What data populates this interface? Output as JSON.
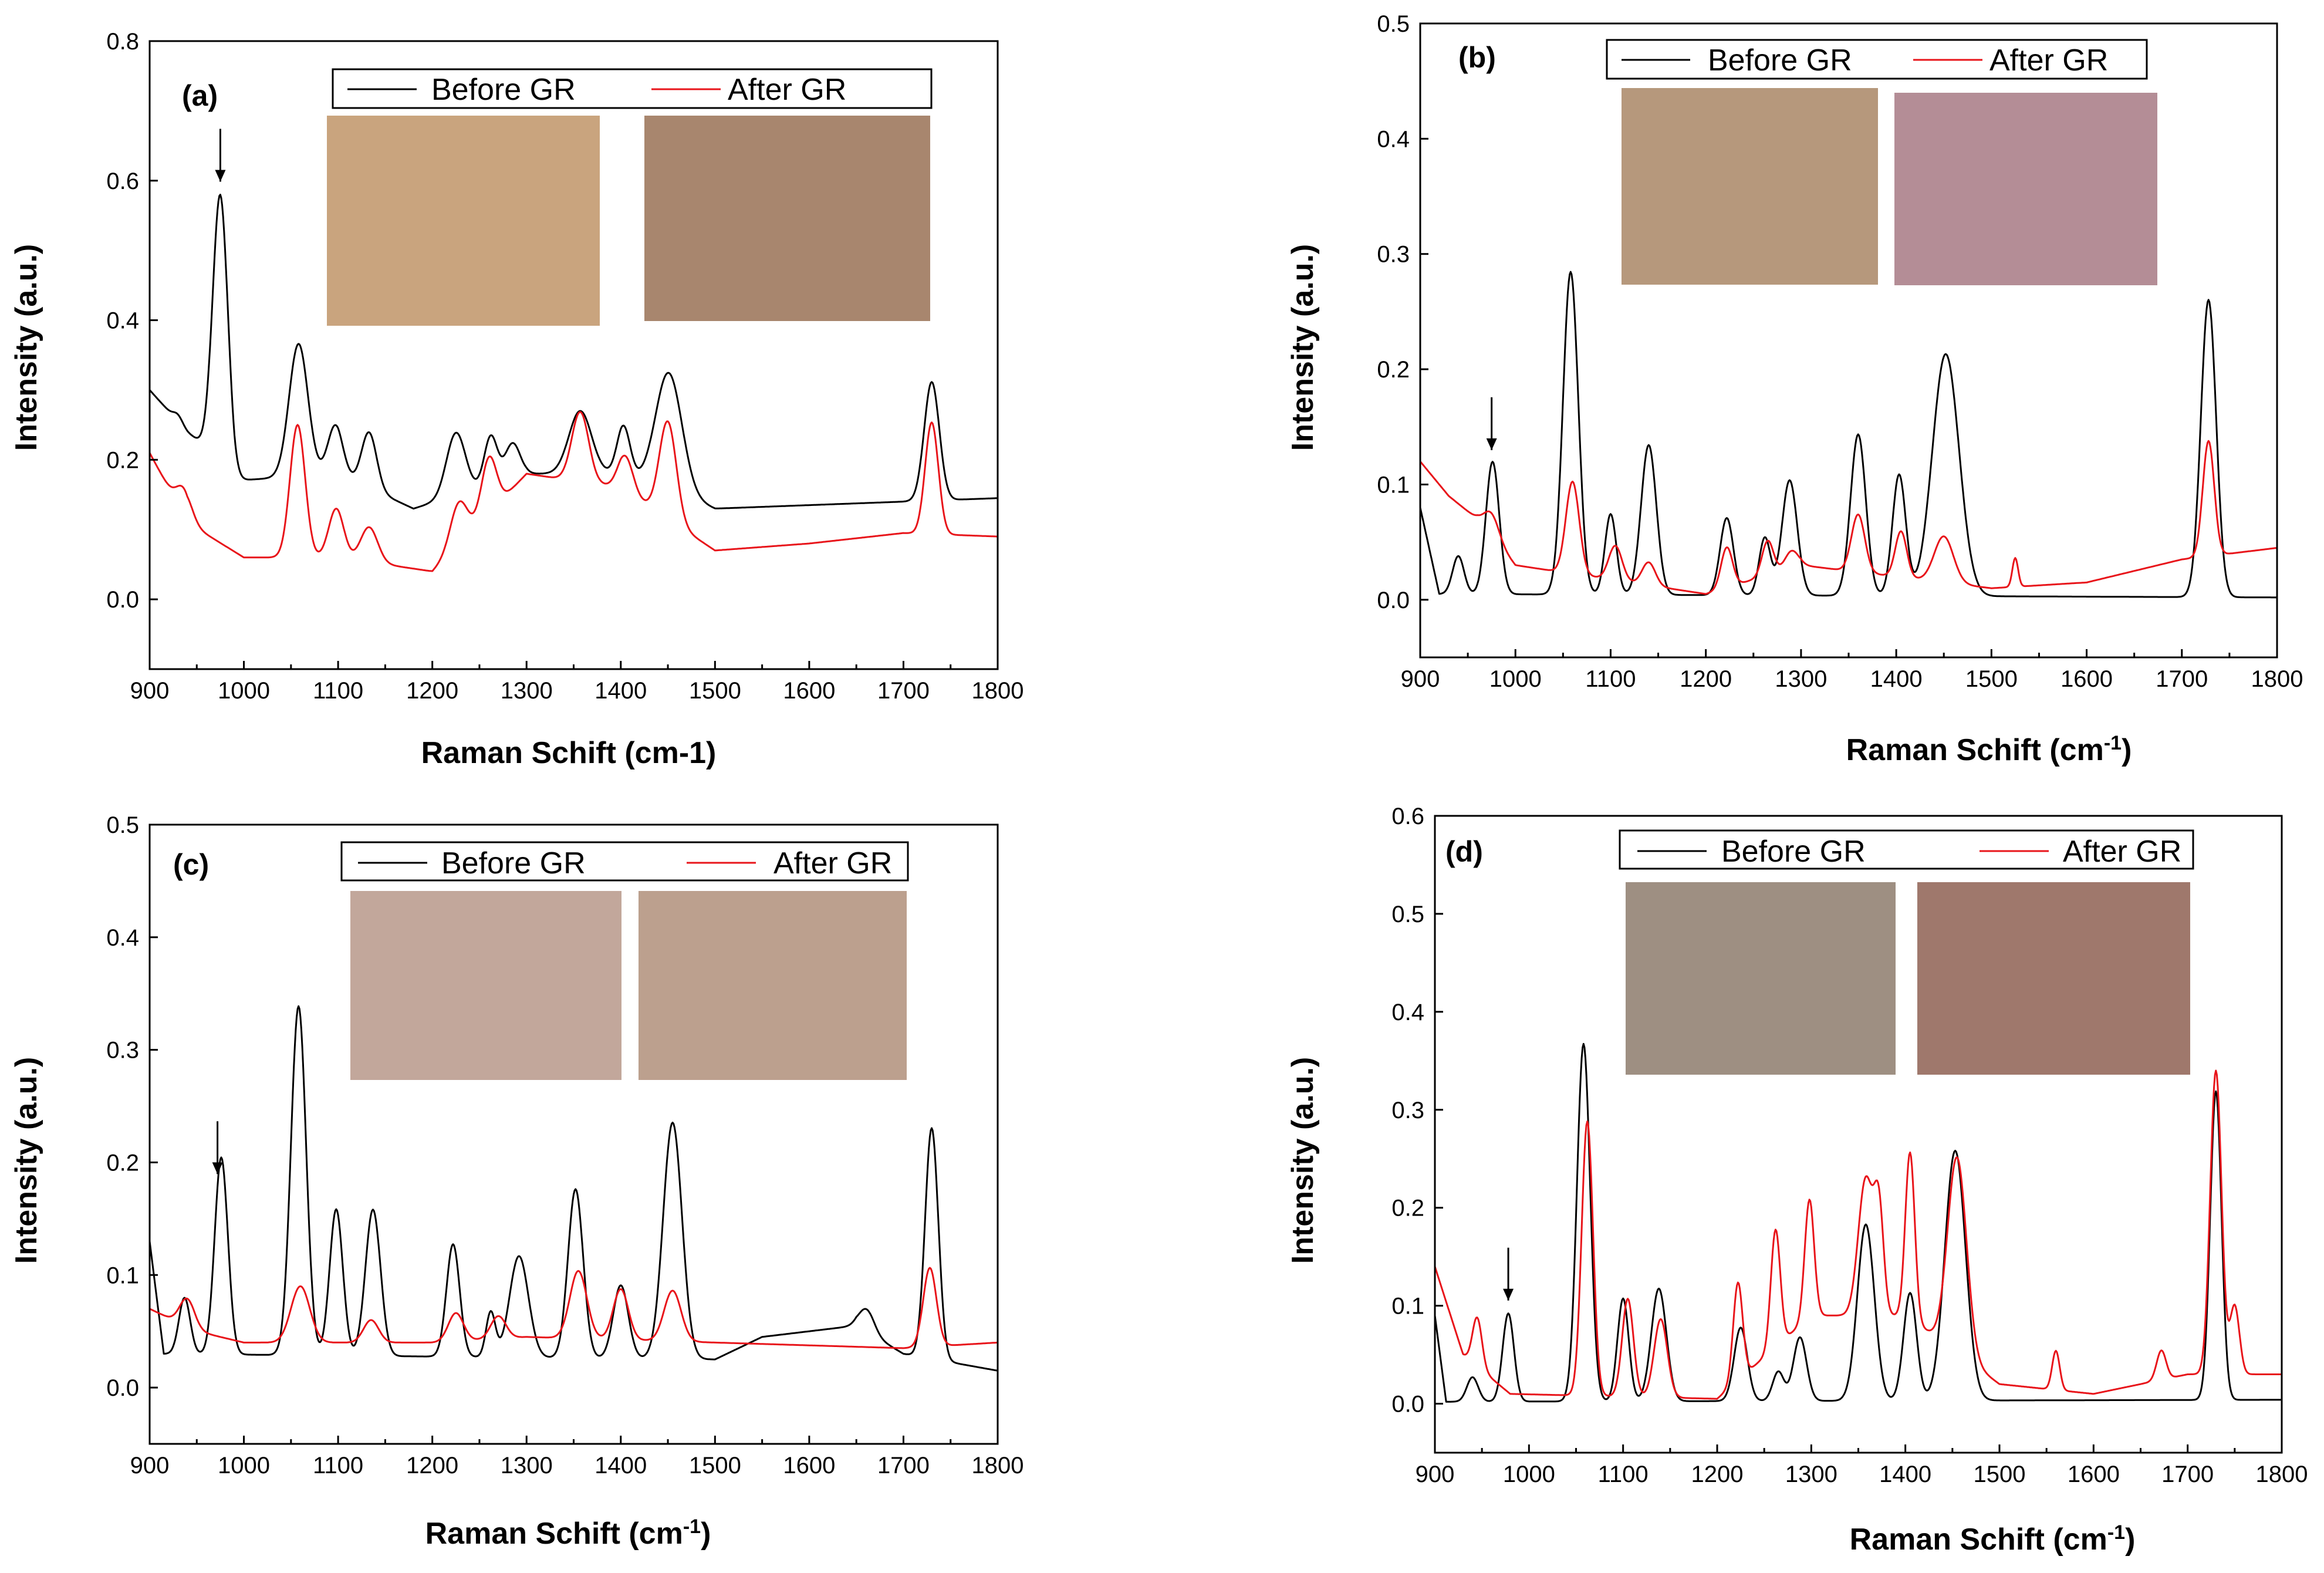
{
  "chart_data": [
    {
      "id": "a",
      "type": "line",
      "panel_label": "(a)",
      "xlabel": "Raman Schift (cm-1)",
      "xlabel_superscript": "",
      "xlabel_suffix": "",
      "ylabel": "Intensity (a.u.)",
      "xlim": [
        900,
        1800
      ],
      "ylim": [
        -0.1,
        0.8
      ],
      "xticks": [
        900,
        1000,
        1100,
        1200,
        1300,
        1400,
        1500,
        1600,
        1700,
        1800
      ],
      "yticks": [
        0.0,
        0.2,
        0.4,
        0.6,
        0.8
      ],
      "ytick_labels": [
        "0.0",
        "0.2",
        "0.4",
        "0.6",
        "0.8"
      ],
      "arrow_x": 975,
      "legend_position": "top",
      "inset_images": [
        "before-gr-micrograph",
        "after-gr-micrograph"
      ],
      "series": [
        {
          "name": "Before GR",
          "color": "#000000",
          "baseline": [
            [
              900,
              0.3
            ],
            [
              940,
              0.24
            ],
            [
              975,
              0.2
            ],
            [
              990,
              0.17
            ],
            [
              1100,
              0.18
            ],
            [
              1180,
              0.13
            ],
            [
              1300,
              0.18
            ],
            [
              1400,
              0.18
            ],
            [
              1500,
              0.13
            ],
            [
              1800,
              0.145
            ]
          ],
          "peaks": [
            [
              930,
              0.01,
              5
            ],
            [
              975,
              0.38,
              8
            ],
            [
              1058,
              0.19,
              10
            ],
            [
              1097,
              0.07,
              8
            ],
            [
              1133,
              0.08,
              8
            ],
            [
              1225,
              0.09,
              10
            ],
            [
              1262,
              0.07,
              7
            ],
            [
              1285,
              0.05,
              8
            ],
            [
              1357,
              0.09,
              12
            ],
            [
              1403,
              0.07,
              7
            ],
            [
              1451,
              0.17,
              14
            ],
            [
              1730,
              0.17,
              8
            ]
          ]
        },
        {
          "name": "After GR",
          "color": "#e8141a",
          "baseline": [
            [
              900,
              0.21
            ],
            [
              940,
              0.11
            ],
            [
              1000,
              0.06
            ],
            [
              1100,
              0.06
            ],
            [
              1200,
              0.04
            ],
            [
              1300,
              0.18
            ],
            [
              1400,
              0.16
            ],
            [
              1500,
              0.07
            ],
            [
              1600,
              0.08
            ],
            [
              1700,
              0.095
            ],
            [
              1800,
              0.09
            ]
          ],
          "peaks": [
            [
              937,
              0.04,
              8
            ],
            [
              1057,
              0.19,
              8
            ],
            [
              1098,
              0.07,
              8
            ],
            [
              1133,
              0.05,
              9
            ],
            [
              1228,
              0.06,
              9
            ],
            [
              1260,
              0.08,
              8
            ],
            [
              1357,
              0.1,
              9
            ],
            [
              1405,
              0.05,
              8
            ],
            [
              1450,
              0.14,
              9
            ],
            [
              1730,
              0.16,
              7
            ]
          ]
        }
      ]
    },
    {
      "id": "b",
      "type": "line",
      "panel_label": "(b)",
      "xlabel": "Raman Schift (cm",
      "xlabel_superscript": "-1",
      "xlabel_suffix": ")",
      "ylabel": "Intensity (a.u.)",
      "xlim": [
        900,
        1800
      ],
      "ylim": [
        -0.05,
        0.5
      ],
      "xticks": [
        900,
        1000,
        1100,
        1200,
        1300,
        1400,
        1500,
        1600,
        1700,
        1800
      ],
      "yticks": [
        0.0,
        0.1,
        0.2,
        0.3,
        0.4,
        0.5
      ],
      "ytick_labels": [
        "0.0",
        "0.1",
        "0.2",
        "0.3",
        "0.4",
        "0.5"
      ],
      "arrow_x": 975,
      "legend_position": "top",
      "inset_images": [
        "before-gr-micrograph",
        "after-gr-micrograph"
      ],
      "series": [
        {
          "name": "Before GR",
          "color": "#000000",
          "baseline": [
            [
              900,
              0.08
            ],
            [
              920,
              0.005
            ],
            [
              1800,
              0.002
            ]
          ],
          "peaks": [
            [
              940,
              0.033,
              6
            ],
            [
              976,
              0.115,
              7
            ],
            [
              1058,
              0.28,
              8
            ],
            [
              1100,
              0.07,
              6
            ],
            [
              1140,
              0.13,
              8
            ],
            [
              1222,
              0.067,
              7
            ],
            [
              1262,
              0.05,
              6
            ],
            [
              1288,
              0.1,
              8
            ],
            [
              1360,
              0.14,
              8
            ],
            [
              1403,
              0.105,
              7
            ],
            [
              1452,
              0.21,
              14
            ],
            [
              1728,
              0.258,
              8
            ]
          ]
        },
        {
          "name": "After GR",
          "color": "#e8141a",
          "baseline": [
            [
              900,
              0.12
            ],
            [
              930,
              0.09
            ],
            [
              960,
              0.07
            ],
            [
              1000,
              0.03
            ],
            [
              1200,
              0.005
            ],
            [
              1300,
              0.03
            ],
            [
              1500,
              0.01
            ],
            [
              1600,
              0.015
            ],
            [
              1700,
              0.035
            ],
            [
              1800,
              0.045
            ]
          ],
          "peaks": [
            [
              975,
              0.02,
              8
            ],
            [
              1060,
              0.08,
              7
            ],
            [
              1105,
              0.03,
              7
            ],
            [
              1140,
              0.02,
              7
            ],
            [
              1222,
              0.035,
              6
            ],
            [
              1265,
              0.03,
              6
            ],
            [
              1290,
              0.015,
              7
            ],
            [
              1360,
              0.05,
              7
            ],
            [
              1405,
              0.04,
              6
            ],
            [
              1450,
              0.04,
              10
            ],
            [
              1525,
              0.025,
              3
            ],
            [
              1728,
              0.1,
              6
            ]
          ]
        }
      ]
    },
    {
      "id": "c",
      "type": "line",
      "panel_label": "(c)",
      "xlabel": "Raman Schift (cm",
      "xlabel_superscript": "-1",
      "xlabel_suffix": ")",
      "ylabel": "Intensity (a.u.)",
      "xlim": [
        900,
        1800
      ],
      "ylim": [
        -0.05,
        0.5
      ],
      "xticks": [
        900,
        1000,
        1100,
        1200,
        1300,
        1400,
        1500,
        1600,
        1700,
        1800
      ],
      "yticks": [
        0.0,
        0.1,
        0.2,
        0.3,
        0.4,
        0.5
      ],
      "ytick_labels": [
        "0.0",
        "0.1",
        "0.2",
        "0.3",
        "0.4",
        "0.5"
      ],
      "arrow_x": 972,
      "legend_position": "top",
      "inset_images": [
        "before-gr-micrograph",
        "after-gr-micrograph"
      ],
      "series": [
        {
          "name": "Before GR",
          "color": "#000000",
          "baseline": [
            [
              900,
              0.13
            ],
            [
              915,
              0.03
            ],
            [
              1500,
              0.025
            ],
            [
              1550,
              0.045
            ],
            [
              1650,
              0.055
            ],
            [
              1700,
              0.03
            ],
            [
              1800,
              0.015
            ]
          ],
          "peaks": [
            [
              937,
              0.05,
              6
            ],
            [
              976,
              0.175,
              7
            ],
            [
              1058,
              0.31,
              8
            ],
            [
              1098,
              0.13,
              7
            ],
            [
              1137,
              0.13,
              8
            ],
            [
              1222,
              0.1,
              7
            ],
            [
              1262,
              0.04,
              5
            ],
            [
              1292,
              0.09,
              10
            ],
            [
              1352,
              0.15,
              8
            ],
            [
              1400,
              0.065,
              8
            ],
            [
              1455,
              0.21,
              10
            ],
            [
              1661,
              0.02,
              8
            ],
            [
              1730,
              0.205,
              7
            ]
          ]
        },
        {
          "name": "After GR",
          "color": "#e8141a",
          "baseline": [
            [
              900,
              0.07
            ],
            [
              950,
              0.05
            ],
            [
              1000,
              0.04
            ],
            [
              1200,
              0.04
            ],
            [
              1300,
              0.045
            ],
            [
              1500,
              0.04
            ],
            [
              1700,
              0.035
            ],
            [
              1800,
              0.04
            ]
          ],
          "peaks": [
            [
              940,
              0.025,
              8
            ],
            [
              1060,
              0.05,
              10
            ],
            [
              1135,
              0.02,
              8
            ],
            [
              1225,
              0.025,
              8
            ],
            [
              1270,
              0.02,
              8
            ],
            [
              1355,
              0.06,
              9
            ],
            [
              1400,
              0.045,
              8
            ],
            [
              1455,
              0.045,
              9
            ],
            [
              1728,
              0.07,
              7
            ]
          ]
        }
      ]
    },
    {
      "id": "d",
      "type": "line",
      "panel_label": "(d)",
      "xlabel": "Raman Schift (cm",
      "xlabel_superscript": "-1",
      "xlabel_suffix": ")",
      "ylabel": "Intensity (a.u.)",
      "xlim": [
        900,
        1800
      ],
      "ylim": [
        -0.05,
        0.6
      ],
      "xticks": [
        900,
        1000,
        1100,
        1200,
        1300,
        1400,
        1500,
        1600,
        1700,
        1800
      ],
      "yticks": [
        0.0,
        0.1,
        0.2,
        0.3,
        0.4,
        0.5,
        0.6
      ],
      "ytick_labels": [
        "0.0",
        "0.1",
        "0.2",
        "0.3",
        "0.4",
        "0.5",
        "0.6"
      ],
      "arrow_x": 978,
      "legend_position": "top",
      "inset_images": [
        "before-gr-micrograph",
        "after-gr-micrograph"
      ],
      "series": [
        {
          "name": "Before GR",
          "color": "#000000",
          "baseline": [
            [
              900,
              0.09
            ],
            [
              912,
              0.002
            ],
            [
              1800,
              0.004
            ]
          ],
          "peaks": [
            [
              940,
              0.025,
              6
            ],
            [
              978,
              0.09,
              6
            ],
            [
              1058,
              0.365,
              7
            ],
            [
              1100,
              0.105,
              6
            ],
            [
              1138,
              0.115,
              8
            ],
            [
              1225,
              0.075,
              7
            ],
            [
              1265,
              0.03,
              6
            ],
            [
              1288,
              0.065,
              7
            ],
            [
              1358,
              0.18,
              9
            ],
            [
              1405,
              0.11,
              7
            ],
            [
              1453,
              0.255,
              11
            ],
            [
              1730,
              0.315,
              6
            ]
          ]
        },
        {
          "name": "After GR",
          "color": "#e8141a",
          "baseline": [
            [
              900,
              0.14
            ],
            [
              930,
              0.05
            ],
            [
              980,
              0.01
            ],
            [
              1200,
              0.005
            ],
            [
              1300,
              0.09
            ],
            [
              1400,
              0.09
            ],
            [
              1500,
              0.02
            ],
            [
              1600,
              0.01
            ],
            [
              1700,
              0.03
            ],
            [
              1800,
              0.03
            ]
          ],
          "peaks": [
            [
              945,
              0.05,
              5
            ],
            [
              1062,
              0.28,
              6
            ],
            [
              1105,
              0.1,
              6
            ],
            [
              1140,
              0.08,
              7
            ],
            [
              1222,
              0.1,
              5
            ],
            [
              1262,
              0.12,
              5
            ],
            [
              1298,
              0.12,
              5
            ],
            [
              1358,
              0.14,
              8
            ],
            [
              1372,
              0.1,
              5
            ],
            [
              1405,
              0.17,
              5
            ],
            [
              1455,
              0.2,
              10
            ],
            [
              1560,
              0.04,
              4
            ],
            [
              1672,
              0.03,
              5
            ],
            [
              1730,
              0.31,
              6
            ],
            [
              1750,
              0.07,
              5
            ]
          ]
        }
      ]
    }
  ]
}
